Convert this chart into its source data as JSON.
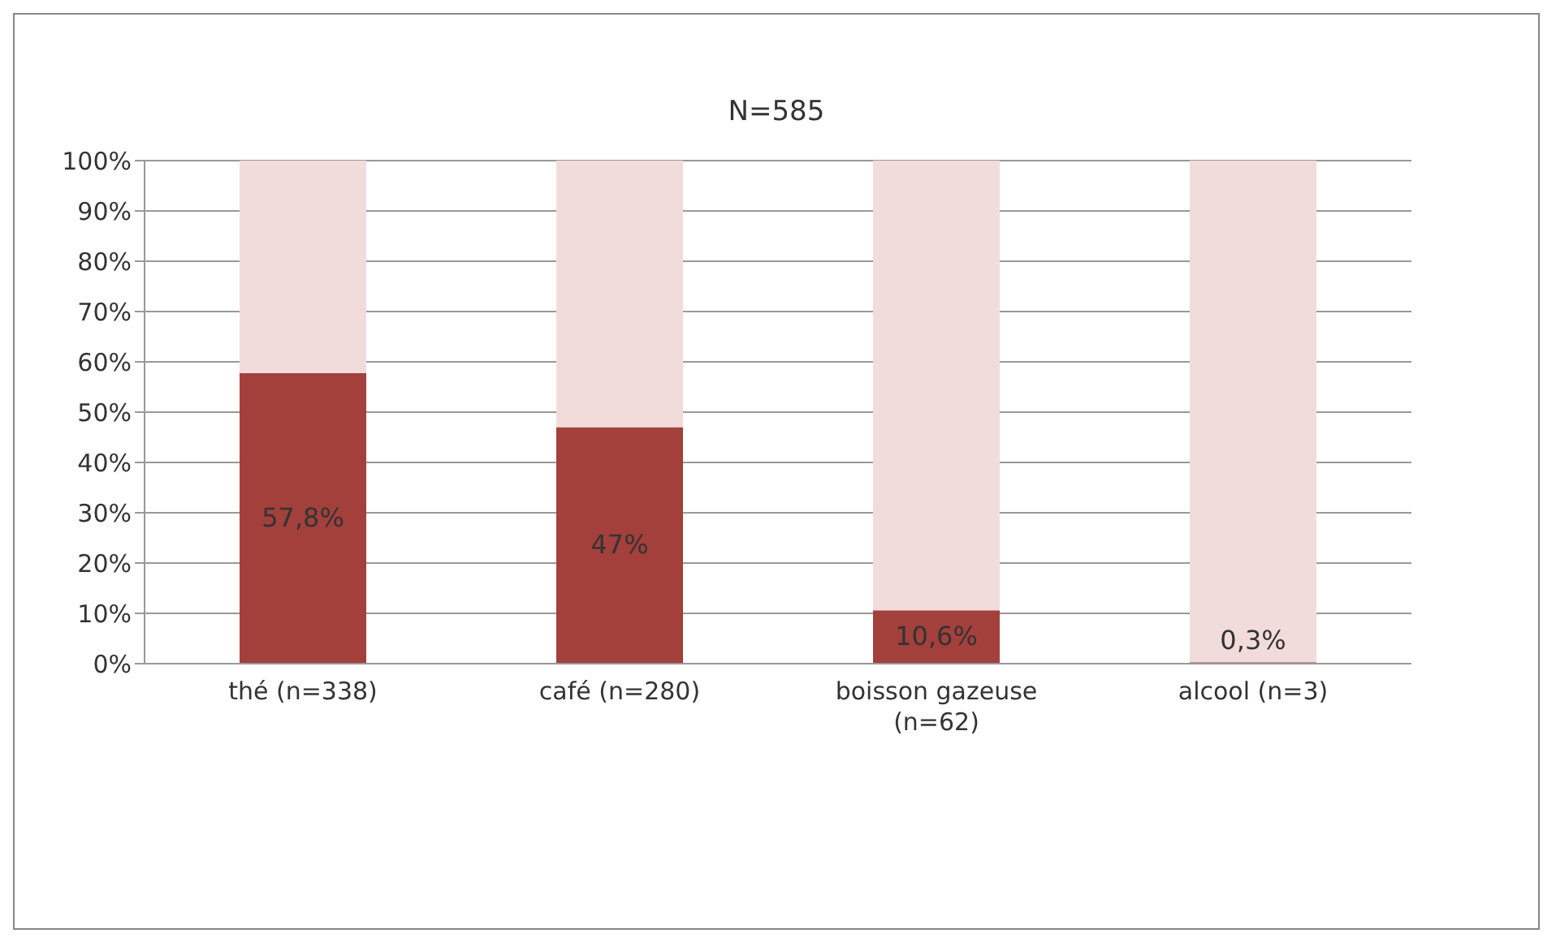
{
  "chart_data": {
    "type": "bar",
    "title": "N=585",
    "stacked": true,
    "categories": [
      "thé (n=338)",
      "café (n=280)",
      "boisson gazeuse (n=62)",
      "alcool (n=3)"
    ],
    "series": [
      {
        "color": "#a3403c",
        "values": [
          57.8,
          47,
          10.6,
          0.3
        ],
        "value_labels": [
          "57,8%",
          "47%",
          "10,6%",
          "0,3%"
        ]
      },
      {
        "color": "#f2dcdb",
        "values": [
          42.2,
          53,
          89.4,
          99.7
        ]
      }
    ],
    "ylim": [
      0,
      100
    ],
    "yticks": [
      {
        "value": 0,
        "label": "0%"
      },
      {
        "value": 10,
        "label": "10%"
      },
      {
        "value": 20,
        "label": "20%"
      },
      {
        "value": 30,
        "label": "30%"
      },
      {
        "value": 40,
        "label": "40%"
      },
      {
        "value": 50,
        "label": "50%"
      },
      {
        "value": 60,
        "label": "60%"
      },
      {
        "value": 70,
        "label": "70%"
      },
      {
        "value": 80,
        "label": "80%"
      },
      {
        "value": 90,
        "label": "90%"
      },
      {
        "value": 100,
        "label": "100%"
      }
    ],
    "grid": "y",
    "legend": false
  }
}
